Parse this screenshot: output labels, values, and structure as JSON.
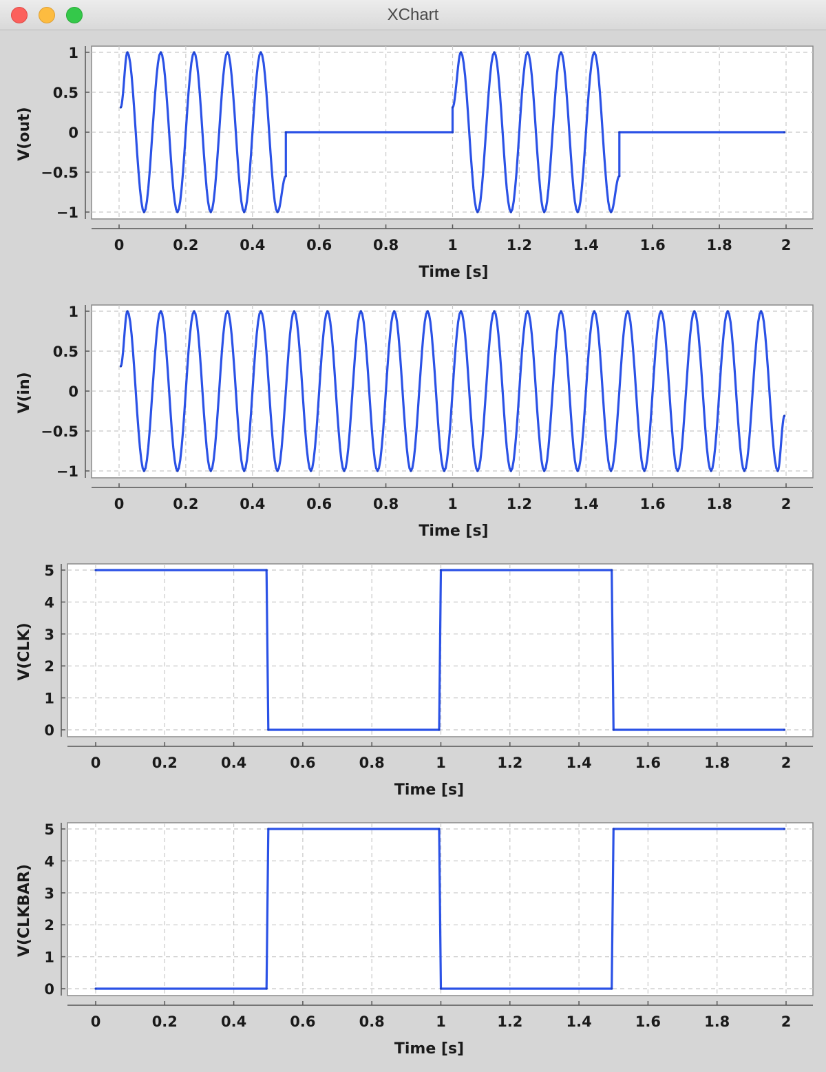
{
  "window": {
    "title": "XChart"
  },
  "colors": {
    "series": "#2b52e6",
    "grid": "#c8c8c8",
    "plot_bg": "#ffffff",
    "chart_bg": "#d6d6d6"
  },
  "chart_data": [
    {
      "type": "line",
      "title": "",
      "xlabel": "Time [s]",
      "ylabel": "V(out)",
      "xlim": [
        0,
        2
      ],
      "ylim": [
        -1,
        1
      ],
      "x_ticks": [
        "0",
        "0.2",
        "0.4",
        "0.6",
        "0.8",
        "1",
        "1.2",
        "1.4",
        "1.6",
        "1.8",
        "2"
      ],
      "y_ticks": [
        "-1",
        "-0.5",
        "0",
        "0.5",
        "1"
      ],
      "grid": true,
      "legend": "none",
      "series": [
        {
          "x": [
            0.005,
            0.025,
            0.075,
            0.125,
            0.175,
            0.225,
            0.275,
            0.325,
            0.375,
            0.425,
            0.475,
            0.5,
            0.5,
            1.0,
            1.0,
            1.025,
            1.075,
            1.125,
            1.175,
            1.225,
            1.275,
            1.325,
            1.375,
            1.425,
            1.475,
            1.5,
            1.5,
            1.995
          ],
          "y": [
            0.31,
            1,
            -1,
            1,
            -1,
            1,
            -1,
            1,
            -1,
            1,
            -1,
            -0.55,
            0,
            0,
            0.31,
            1,
            -1,
            1,
            -1,
            1,
            -1,
            1,
            -1,
            1,
            -1,
            -0.55,
            0,
            0
          ]
        }
      ]
    },
    {
      "type": "line",
      "title": "",
      "xlabel": "Time [s]",
      "ylabel": "V(in)",
      "xlim": [
        0,
        2
      ],
      "ylim": [
        -1,
        1
      ],
      "x_ticks": [
        "0",
        "0.2",
        "0.4",
        "0.6",
        "0.8",
        "1",
        "1.2",
        "1.4",
        "1.6",
        "1.8",
        "2"
      ],
      "y_ticks": [
        "-1",
        "-0.5",
        "0",
        "0.5",
        "1"
      ],
      "grid": true,
      "legend": "none",
      "series": [
        {
          "x": [
            0.005,
            0.025,
            0.075,
            0.125,
            0.175,
            0.225,
            0.275,
            0.325,
            0.375,
            0.425,
            0.475,
            0.525,
            0.575,
            0.625,
            0.675,
            0.725,
            0.775,
            0.825,
            0.875,
            0.925,
            0.975,
            1.025,
            1.075,
            1.125,
            1.175,
            1.225,
            1.275,
            1.325,
            1.375,
            1.425,
            1.475,
            1.525,
            1.575,
            1.625,
            1.675,
            1.725,
            1.775,
            1.825,
            1.875,
            1.925,
            1.975,
            1.995
          ],
          "y": [
            0.31,
            1,
            -1,
            1,
            -1,
            1,
            -1,
            1,
            -1,
            1,
            -1,
            1,
            -1,
            1,
            -1,
            1,
            -1,
            1,
            -1,
            1,
            -1,
            1,
            -1,
            1,
            -1,
            1,
            -1,
            1,
            -1,
            1,
            -1,
            1,
            -1,
            1,
            -1,
            1,
            -1,
            1,
            -1,
            1,
            -1,
            -0.31
          ]
        }
      ]
    },
    {
      "type": "line",
      "title": "",
      "xlabel": "Time [s]",
      "ylabel": "V(CLK)",
      "xlim": [
        0,
        2
      ],
      "ylim": [
        0,
        5
      ],
      "x_ticks": [
        "0",
        "0.2",
        "0.4",
        "0.6",
        "0.8",
        "1",
        "1.2",
        "1.4",
        "1.6",
        "1.8",
        "2"
      ],
      "y_ticks": [
        "0",
        "1",
        "2",
        "3",
        "4",
        "5"
      ],
      "grid": true,
      "legend": "none",
      "series": [
        {
          "x": [
            0,
            0.495,
            0.5,
            0.995,
            1.0,
            1.495,
            1.5,
            1.995
          ],
          "y": [
            5,
            5,
            0,
            0,
            5,
            5,
            0,
            0
          ]
        }
      ]
    },
    {
      "type": "line",
      "title": "",
      "xlabel": "Time [s]",
      "ylabel": "V(CLKBAR)",
      "xlim": [
        0,
        2
      ],
      "ylim": [
        0,
        5
      ],
      "x_ticks": [
        "0",
        "0.2",
        "0.4",
        "0.6",
        "0.8",
        "1",
        "1.2",
        "1.4",
        "1.6",
        "1.8",
        "2"
      ],
      "y_ticks": [
        "0",
        "1",
        "2",
        "3",
        "4",
        "5"
      ],
      "grid": true,
      "legend": "none",
      "series": [
        {
          "x": [
            0,
            0.495,
            0.5,
            0.995,
            1.0,
            1.495,
            1.5,
            1.995
          ],
          "y": [
            0,
            0,
            5,
            5,
            0,
            0,
            5,
            5
          ]
        }
      ]
    }
  ]
}
